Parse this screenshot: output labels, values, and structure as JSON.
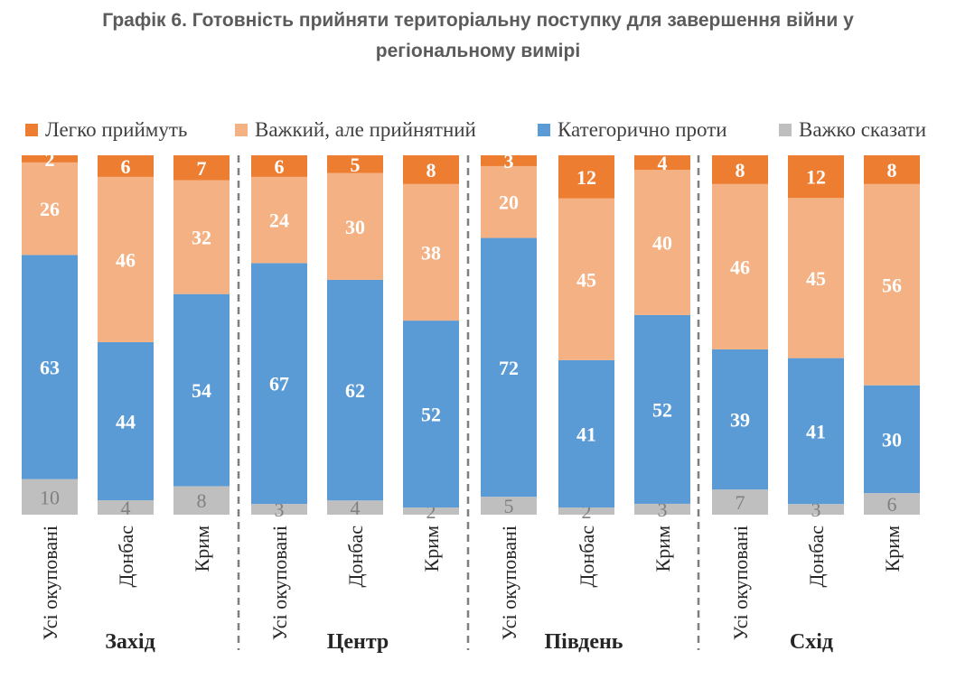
{
  "title_line1": "Графік 6. Готовність прийняти територіальну поступку для завершення війни у",
  "title_line2": "регіональному вимірі",
  "colors": {
    "easy": "#ed7d31",
    "hard": "#f4b183",
    "against": "#5b9bd5",
    "unsure": "#bfbfbf",
    "separator": "#7f7f7f"
  },
  "chart_data": {
    "type": "bar",
    "stacked": true,
    "orientation": "vertical",
    "legend_position": "top",
    "ylim": [
      0,
      100
    ],
    "series_order_bottom_to_top": [
      "Важко сказати",
      "Категорично проти",
      "Важкий, але прийнятний",
      "Легко приймуть"
    ],
    "series": [
      {
        "name": "Легко приймуть",
        "color_key": "easy",
        "values": [
          2,
          6,
          7,
          6,
          5,
          8,
          3,
          12,
          4,
          8,
          12,
          8
        ]
      },
      {
        "name": "Важкий, але прийнятний",
        "color_key": "hard",
        "values": [
          26,
          46,
          32,
          24,
          30,
          38,
          20,
          45,
          40,
          46,
          45,
          56
        ]
      },
      {
        "name": "Категорично проти",
        "color_key": "against",
        "values": [
          63,
          44,
          54,
          67,
          62,
          52,
          72,
          41,
          52,
          39,
          41,
          30
        ]
      },
      {
        "name": "Важко сказати",
        "color_key": "unsure",
        "values": [
          10,
          4,
          8,
          3,
          4,
          2,
          5,
          2,
          3,
          7,
          3,
          6
        ]
      }
    ],
    "categories": [
      "Усі окуповані",
      "Донбас",
      "Крим",
      "Усі окуповані",
      "Донбас",
      "Крим",
      "Усі окуповані",
      "Донбас",
      "Крим",
      "Усі окуповані",
      "Донбас",
      "Крим"
    ],
    "groups": [
      {
        "name": "Захід",
        "size": 3
      },
      {
        "name": "Центр",
        "size": 3
      },
      {
        "name": "Південь",
        "size": 3
      },
      {
        "name": "Схід",
        "size": 3
      }
    ]
  }
}
